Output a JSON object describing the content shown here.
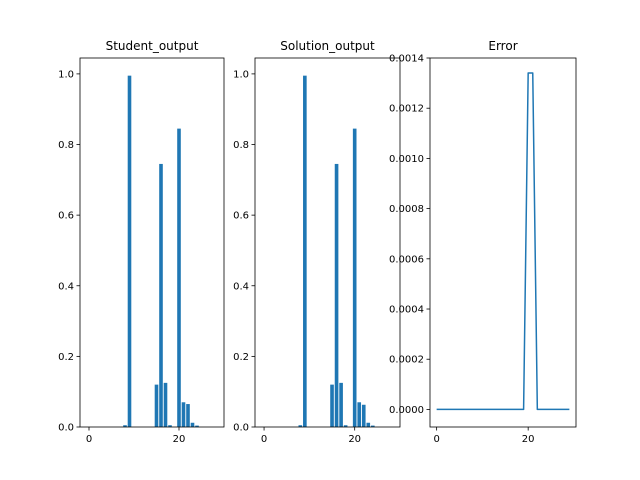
{
  "chart_data": [
    {
      "type": "bar",
      "title": "Student_output",
      "xlabel": "",
      "ylabel": "",
      "xlim": [
        -2,
        30
      ],
      "ylim": [
        0,
        1.045
      ],
      "xticks": [
        0,
        20
      ],
      "yticks": [
        0.0,
        0.2,
        0.4,
        0.6,
        0.8,
        1.0
      ],
      "ytick_labels": [
        "0.0",
        "0.2",
        "0.4",
        "0.6",
        "0.8",
        "1.0"
      ],
      "bar_width": 0.8,
      "color": "#1f77b4",
      "x": [
        0,
        1,
        2,
        3,
        4,
        5,
        6,
        7,
        8,
        9,
        10,
        11,
        12,
        13,
        14,
        15,
        16,
        17,
        18,
        19,
        20,
        21,
        22,
        23,
        24,
        25,
        26,
        27,
        28,
        29
      ],
      "values": [
        0,
        0,
        0,
        0,
        0,
        0,
        0,
        0,
        0.005,
        0.995,
        0,
        0,
        0,
        0,
        0,
        0.12,
        0.745,
        0.125,
        0.005,
        0,
        0.845,
        0.07,
        0.065,
        0.012,
        0.004,
        0,
        0,
        0,
        0,
        0
      ]
    },
    {
      "type": "bar",
      "title": "Solution_output",
      "xlabel": "",
      "ylabel": "",
      "xlim": [
        -2,
        30
      ],
      "ylim": [
        0,
        1.045
      ],
      "xticks": [
        0,
        20
      ],
      "yticks": [
        0.0,
        0.2,
        0.4,
        0.6,
        0.8,
        1.0
      ],
      "ytick_labels": [
        "0.0",
        "0.2",
        "0.4",
        "0.6",
        "0.8",
        "1.0"
      ],
      "bar_width": 0.8,
      "color": "#1f77b4",
      "x": [
        0,
        1,
        2,
        3,
        4,
        5,
        6,
        7,
        8,
        9,
        10,
        11,
        12,
        13,
        14,
        15,
        16,
        17,
        18,
        19,
        20,
        21,
        22,
        23,
        24,
        25,
        26,
        27,
        28,
        29
      ],
      "values": [
        0,
        0,
        0,
        0,
        0,
        0,
        0,
        0,
        0.005,
        0.995,
        0,
        0,
        0,
        0,
        0,
        0.12,
        0.745,
        0.125,
        0.005,
        0,
        0.845,
        0.07,
        0.063,
        0.012,
        0.004,
        0,
        0,
        0,
        0,
        0
      ]
    },
    {
      "type": "line",
      "title": "Error",
      "xlabel": "",
      "ylabel": "",
      "xlim": [
        -1.45,
        30.45
      ],
      "ylim": [
        -7e-05,
        0.0014
      ],
      "xticks": [
        0,
        20
      ],
      "yticks": [
        0.0,
        0.0002,
        0.0004,
        0.0006,
        0.0008,
        0.001,
        0.0012,
        0.0014
      ],
      "ytick_labels": [
        "0.0000",
        "0.0002",
        "0.0004",
        "0.0006",
        "0.0008",
        "0.0010",
        "0.0012",
        "0.0014"
      ],
      "color": "#1f77b4",
      "x": [
        0,
        1,
        2,
        3,
        4,
        5,
        6,
        7,
        8,
        9,
        10,
        11,
        12,
        13,
        14,
        15,
        16,
        17,
        18,
        19,
        20,
        21,
        22,
        23,
        24,
        25,
        26,
        27,
        28,
        29
      ],
      "values": [
        0,
        0,
        0,
        0,
        0,
        0,
        0,
        0,
        0,
        0,
        0,
        0,
        0,
        0,
        0,
        0,
        0,
        0,
        0,
        0,
        0.00134,
        0.00134,
        0,
        0,
        0,
        0,
        0,
        0,
        0,
        0
      ]
    }
  ]
}
